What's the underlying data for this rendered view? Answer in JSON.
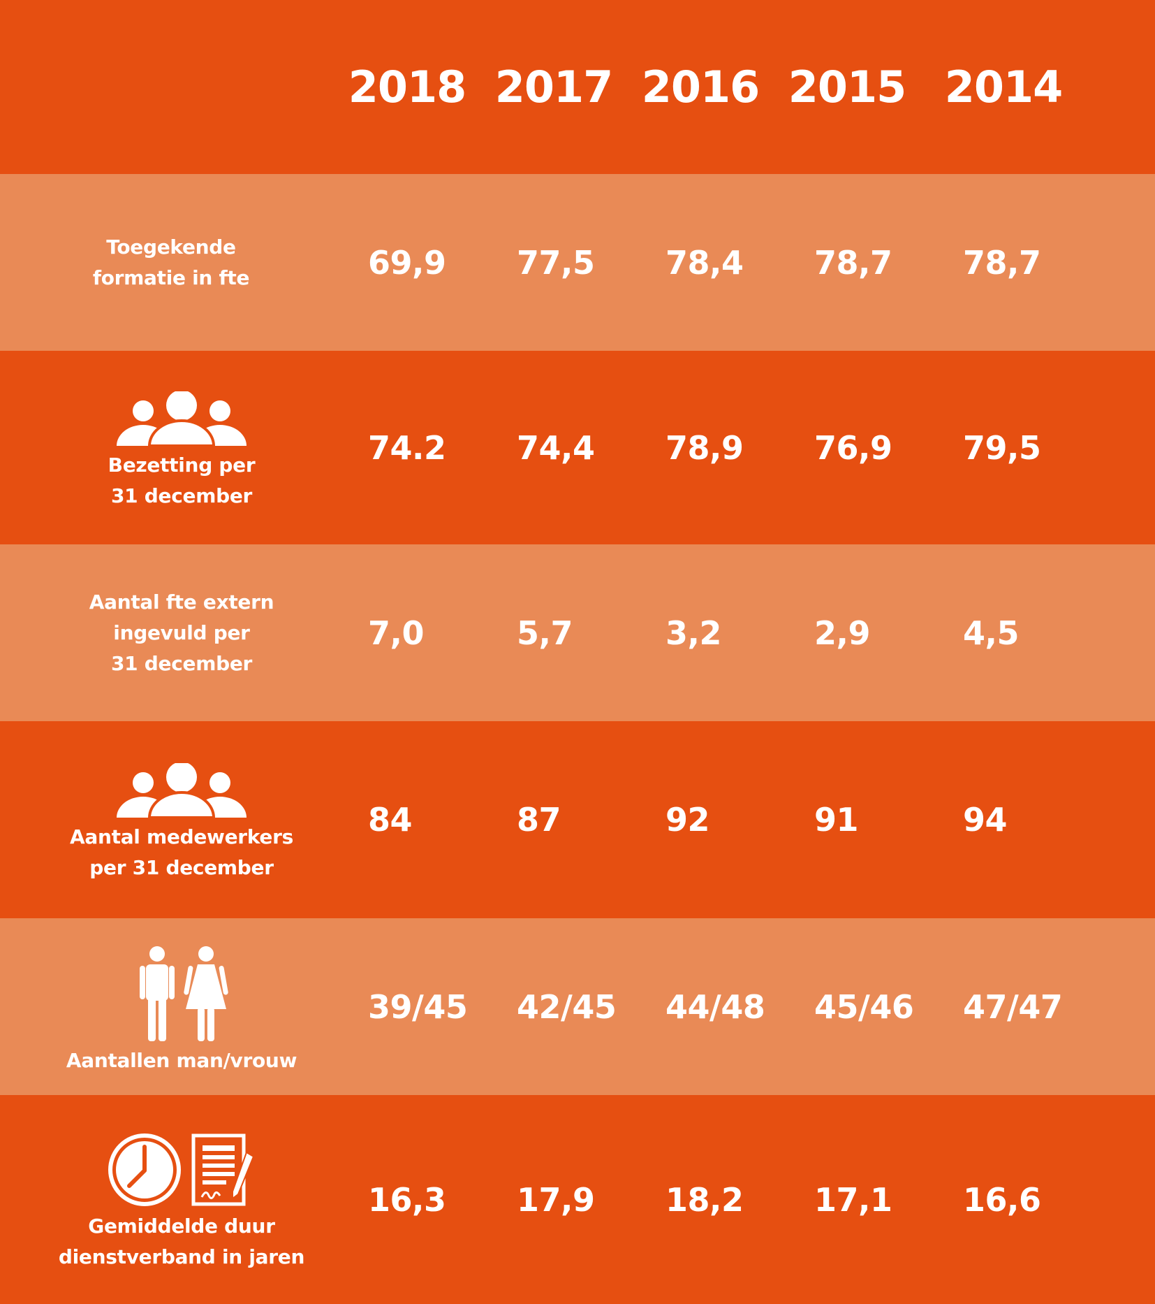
{
  "colors": {
    "dark": "#e64f11",
    "light": "#e98a56",
    "text": "#ffffff"
  },
  "chart_data": {
    "type": "table",
    "columns": [
      "2018",
      "2017",
      "2016",
      "2015",
      "2014"
    ],
    "rows": [
      {
        "label": "Toegekende\nformatie in fte",
        "icon": "",
        "values": [
          "69,9",
          "77,5",
          "78,4",
          "78,7",
          "78,7"
        ]
      },
      {
        "label": "Bezetting per\n31 december",
        "icon": "people-group-icon",
        "values": [
          "74.2",
          "74,4",
          "78,9",
          "76,9",
          "79,5"
        ]
      },
      {
        "label": "Aantal fte extern\ningevuld per\n31 december",
        "icon": "",
        "values": [
          "7,0",
          "5,7",
          "3,2",
          "2,9",
          "4,5"
        ]
      },
      {
        "label": "Aantal medewerkers\nper 31 december",
        "icon": "people-group-icon",
        "values": [
          "84",
          "87",
          "92",
          "91",
          "94"
        ]
      },
      {
        "label": "Aantallen man/vrouw",
        "icon": "man-woman-icon",
        "values": [
          "39/45",
          "42/45",
          "44/48",
          "45/46",
          "47/47"
        ]
      },
      {
        "label": "Gemiddelde duur\ndienstverband in jaren",
        "icon": "clock-contract-icon",
        "values": [
          "16,3",
          "17,9",
          "18,2",
          "17,1",
          "16,6"
        ]
      }
    ]
  }
}
